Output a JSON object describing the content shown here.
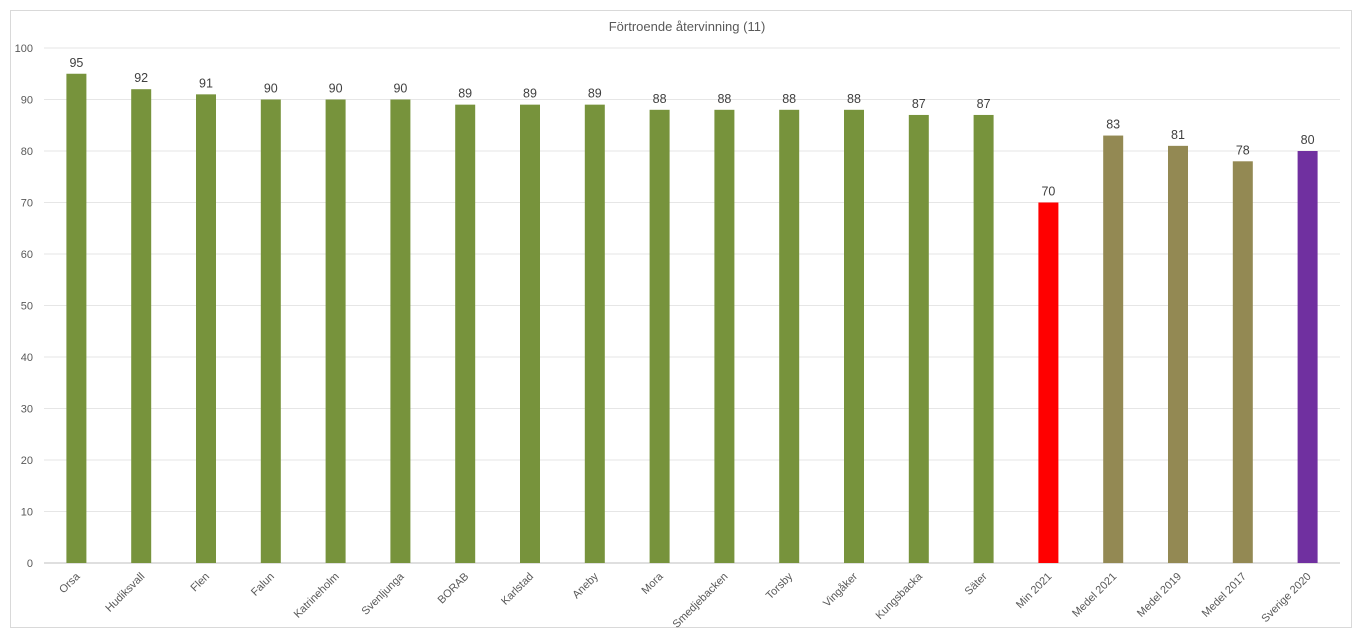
{
  "chart_data": {
    "type": "bar",
    "title": "Förtroende återvinning (11)",
    "xlabel": "",
    "ylabel": "",
    "ylim": [
      0,
      100
    ],
    "yticks": [
      0,
      10,
      20,
      30,
      40,
      50,
      60,
      70,
      80,
      90,
      100
    ],
    "grid": true,
    "legend": "none",
    "categories": [
      "Orsa",
      "Hudiksvall",
      "Flen",
      "Falun",
      "Katrineholm",
      "Svenljunga",
      "BORAB",
      "Karlstad",
      "Aneby",
      "Mora",
      "Smedjebacken",
      "Torsby",
      "Vingåker",
      "Kungsbacka",
      "Säter",
      "Min 2021",
      "Medel 2021",
      "Medel 2019",
      "Medel 2017",
      "Sverige 2020"
    ],
    "values": [
      95,
      92,
      91,
      90,
      90,
      90,
      89,
      89,
      89,
      88,
      88,
      88,
      88,
      87,
      87,
      70,
      83,
      81,
      78,
      80
    ],
    "colors": [
      "#77933c",
      "#77933c",
      "#77933c",
      "#77933c",
      "#77933c",
      "#77933c",
      "#77933c",
      "#77933c",
      "#77933c",
      "#77933c",
      "#77933c",
      "#77933c",
      "#77933c",
      "#77933c",
      "#77933c",
      "#ff0000",
      "#938953",
      "#938953",
      "#938953",
      "#7030a0"
    ]
  }
}
